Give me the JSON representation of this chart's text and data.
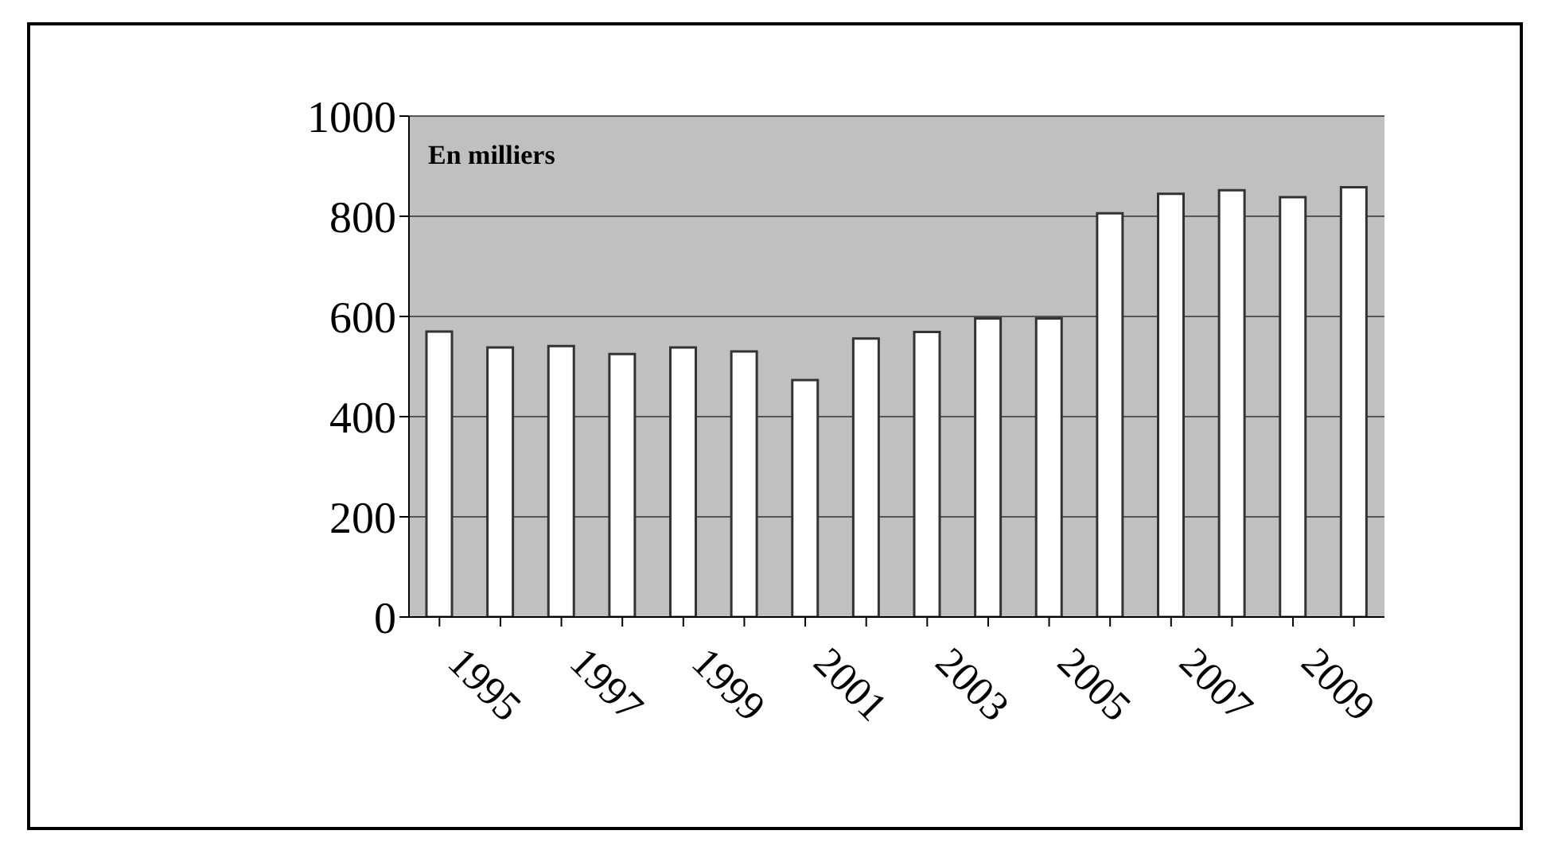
{
  "chart_data": {
    "type": "bar",
    "categories": [
      "1995",
      null,
      "1997",
      null,
      "1999",
      null,
      "2001",
      null,
      "2003",
      null,
      "2005",
      null,
      "2007",
      null,
      "2009",
      null
    ],
    "values": [
      570,
      538,
      541,
      525,
      538,
      530,
      473,
      556,
      569,
      596,
      596,
      806,
      845,
      852,
      838,
      858
    ],
    "color": "#ffffff",
    "ylim": [
      0,
      1000
    ],
    "yticks": [
      0,
      200,
      400,
      600,
      800,
      1000
    ],
    "grid": "y",
    "annotations": [
      "En milliers"
    ]
  }
}
